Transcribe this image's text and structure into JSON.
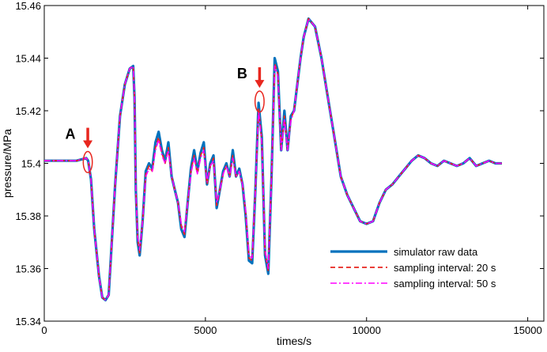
{
  "chart_data": {
    "type": "line",
    "xlabel": "times/s",
    "ylabel": "pressure/MPa",
    "xlim": [
      0,
      15500
    ],
    "ylim": [
      15.34,
      15.46
    ],
    "xticks": [
      {
        "value": 0,
        "label": "0"
      },
      {
        "value": 5000,
        "label": "5000"
      },
      {
        "value": 10000,
        "label": "10000"
      },
      {
        "value": 15000,
        "label": "15000"
      }
    ],
    "yticks": [
      {
        "value": 15.34,
        "label": "15.34"
      },
      {
        "value": 15.36,
        "label": "15.36"
      },
      {
        "value": 15.38,
        "label": "15.38"
      },
      {
        "value": 15.4,
        "label": "15.4"
      },
      {
        "value": 15.42,
        "label": "15.42"
      },
      {
        "value": 15.44,
        "label": "15.44"
      },
      {
        "value": 15.46,
        "label": "15.46"
      }
    ],
    "grid": false,
    "legend_position": "bottom-right",
    "series": [
      {
        "name": "simulator raw data",
        "color": "#0072BD",
        "style": "solid",
        "x": [
          0,
          600,
          1000,
          1300,
          1360,
          1450,
          1550,
          1700,
          1800,
          1900,
          2000,
          2200,
          2350,
          2500,
          2650,
          2760,
          2800,
          2840,
          2900,
          2960,
          3050,
          3150,
          3250,
          3350,
          3450,
          3550,
          3650,
          3750,
          3850,
          3950,
          4050,
          4150,
          4250,
          4350,
          4450,
          4550,
          4650,
          4750,
          4850,
          4950,
          5050,
          5150,
          5250,
          5350,
          5450,
          5550,
          5650,
          5750,
          5850,
          5950,
          6050,
          6150,
          6250,
          6350,
          6450,
          6550,
          6650,
          6750,
          6850,
          6950,
          7050,
          7150,
          7250,
          7350,
          7450,
          7550,
          7650,
          7750,
          7850,
          7950,
          8050,
          8200,
          8400,
          8600,
          8800,
          9000,
          9200,
          9400,
          9600,
          9800,
          10000,
          10200,
          10400,
          10600,
          10800,
          11000,
          11200,
          11400,
          11600,
          11800,
          12000,
          12200,
          12400,
          12600,
          12800,
          13000,
          13200,
          13400,
          13600,
          13800,
          14000,
          14200
        ],
        "y": [
          15.401,
          15.401,
          15.401,
          15.402,
          15.401,
          15.394,
          15.375,
          15.357,
          15.349,
          15.348,
          15.35,
          15.392,
          15.418,
          15.43,
          15.436,
          15.437,
          15.425,
          15.39,
          15.37,
          15.365,
          15.378,
          15.397,
          15.4,
          15.398,
          15.408,
          15.412,
          15.405,
          15.401,
          15.408,
          15.395,
          15.39,
          15.385,
          15.375,
          15.372,
          15.385,
          15.398,
          15.405,
          15.397,
          15.404,
          15.408,
          15.392,
          15.4,
          15.403,
          15.383,
          15.39,
          15.397,
          15.4,
          15.395,
          15.405,
          15.395,
          15.398,
          15.392,
          15.38,
          15.363,
          15.362,
          15.39,
          15.423,
          15.41,
          15.365,
          15.358,
          15.395,
          15.44,
          15.435,
          15.405,
          15.42,
          15.405,
          15.418,
          15.42,
          15.43,
          15.44,
          15.448,
          15.455,
          15.452,
          15.44,
          15.425,
          15.41,
          15.395,
          15.388,
          15.383,
          15.378,
          15.377,
          15.378,
          15.385,
          15.39,
          15.392,
          15.395,
          15.398,
          15.401,
          15.403,
          15.402,
          15.4,
          15.399,
          15.401,
          15.4,
          15.399,
          15.4,
          15.402,
          15.399,
          15.4,
          15.401,
          15.4,
          15.4
        ]
      },
      {
        "name": "sampling interval: 20 s",
        "color": "#E8261E",
        "style": "dashed",
        "x": [
          0,
          600,
          1000,
          1300,
          1360,
          1450,
          1550,
          1700,
          1800,
          1900,
          2000,
          2200,
          2350,
          2500,
          2650,
          2760,
          2800,
          2840,
          2900,
          2960,
          3050,
          3150,
          3250,
          3350,
          3450,
          3550,
          3650,
          3750,
          3850,
          3950,
          4050,
          4150,
          4250,
          4350,
          4450,
          4550,
          4650,
          4750,
          4850,
          4950,
          5050,
          5150,
          5250,
          5350,
          5450,
          5550,
          5650,
          5750,
          5850,
          5950,
          6050,
          6150,
          6250,
          6350,
          6450,
          6550,
          6650,
          6750,
          6850,
          6950,
          7050,
          7150,
          7250,
          7350,
          7450,
          7550,
          7650,
          7750,
          7850,
          7950,
          8050,
          8200,
          8400,
          8600,
          8800,
          9000,
          9200,
          9400,
          9600,
          9800,
          10000,
          10200,
          10400,
          10600,
          10800,
          11000,
          11200,
          11400,
          11600,
          11800,
          12000,
          12200,
          12400,
          12600,
          12800,
          13000,
          13200,
          13400,
          13600,
          13800,
          14000,
          14200
        ],
        "y": [
          15.401,
          15.401,
          15.401,
          15.402,
          15.401,
          15.394,
          15.375,
          15.357,
          15.349,
          15.348,
          15.35,
          15.392,
          15.418,
          15.43,
          15.436,
          15.437,
          15.425,
          15.39,
          15.371,
          15.366,
          15.378,
          15.396,
          15.399,
          15.397,
          15.406,
          15.41,
          15.404,
          15.4,
          15.406,
          15.395,
          15.39,
          15.385,
          15.376,
          15.373,
          15.385,
          15.397,
          15.403,
          15.396,
          15.403,
          15.406,
          15.392,
          15.399,
          15.402,
          15.384,
          15.39,
          15.396,
          15.399,
          15.395,
          15.403,
          15.395,
          15.397,
          15.392,
          15.381,
          15.364,
          15.363,
          15.39,
          15.421,
          15.409,
          15.366,
          15.359,
          15.395,
          15.438,
          15.434,
          15.405,
          15.418,
          15.405,
          15.417,
          15.42,
          15.43,
          15.44,
          15.448,
          15.455,
          15.452,
          15.44,
          15.425,
          15.41,
          15.395,
          15.388,
          15.383,
          15.378,
          15.377,
          15.378,
          15.385,
          15.39,
          15.392,
          15.395,
          15.398,
          15.401,
          15.403,
          15.402,
          15.4,
          15.399,
          15.401,
          15.4,
          15.399,
          15.4,
          15.402,
          15.399,
          15.4,
          15.401,
          15.4,
          15.4
        ]
      },
      {
        "name": "sampling interval: 50 s",
        "color": "#FF00FF",
        "style": "dashdot",
        "x": [
          0,
          600,
          1000,
          1300,
          1360,
          1450,
          1550,
          1700,
          1800,
          1900,
          2000,
          2200,
          2350,
          2500,
          2650,
          2760,
          2800,
          2840,
          2900,
          2960,
          3050,
          3150,
          3250,
          3350,
          3450,
          3550,
          3650,
          3750,
          3850,
          3950,
          4050,
          4150,
          4250,
          4350,
          4450,
          4550,
          4650,
          4750,
          4850,
          4950,
          5050,
          5150,
          5250,
          5350,
          5450,
          5550,
          5650,
          5750,
          5850,
          5950,
          6050,
          6150,
          6250,
          6350,
          6450,
          6550,
          6650,
          6750,
          6850,
          6950,
          7050,
          7150,
          7250,
          7350,
          7450,
          7550,
          7650,
          7750,
          7850,
          7950,
          8050,
          8200,
          8400,
          8600,
          8800,
          9000,
          9200,
          9400,
          9600,
          9800,
          10000,
          10200,
          10400,
          10600,
          10800,
          11000,
          11200,
          11400,
          11600,
          11800,
          12000,
          12200,
          12400,
          12600,
          12800,
          13000,
          13200,
          13400,
          13600,
          13800,
          14000,
          14200
        ],
        "y": [
          15.401,
          15.401,
          15.401,
          15.402,
          15.401,
          15.394,
          15.375,
          15.357,
          15.349,
          15.348,
          15.35,
          15.392,
          15.418,
          15.43,
          15.436,
          15.437,
          15.425,
          15.39,
          15.372,
          15.367,
          15.378,
          15.395,
          15.398,
          15.397,
          15.405,
          15.409,
          15.403,
          15.4,
          15.405,
          15.395,
          15.39,
          15.385,
          15.377,
          15.374,
          15.385,
          15.396,
          15.402,
          15.396,
          15.402,
          15.405,
          15.393,
          15.399,
          15.401,
          15.385,
          15.39,
          15.396,
          15.399,
          15.395,
          15.402,
          15.395,
          15.397,
          15.392,
          15.382,
          15.365,
          15.364,
          15.39,
          15.42,
          15.408,
          15.367,
          15.36,
          15.395,
          15.437,
          15.433,
          15.405,
          15.417,
          15.405,
          15.416,
          15.42,
          15.43,
          15.44,
          15.448,
          15.455,
          15.452,
          15.44,
          15.425,
          15.41,
          15.395,
          15.388,
          15.383,
          15.378,
          15.377,
          15.378,
          15.385,
          15.39,
          15.392,
          15.395,
          15.398,
          15.401,
          15.403,
          15.402,
          15.4,
          15.399,
          15.401,
          15.4,
          15.399,
          15.4,
          15.402,
          15.399,
          15.4,
          15.401,
          15.4,
          15.4
        ]
      }
    ],
    "annotations": [
      {
        "label": "A",
        "x": 1350,
        "y": 15.4005,
        "rx": 140,
        "ry": 0.004,
        "color": "#E8261E"
      },
      {
        "label": "B",
        "x": 6680,
        "y": 15.4235,
        "rx": 140,
        "ry": 0.004,
        "color": "#E8261E"
      }
    ]
  }
}
